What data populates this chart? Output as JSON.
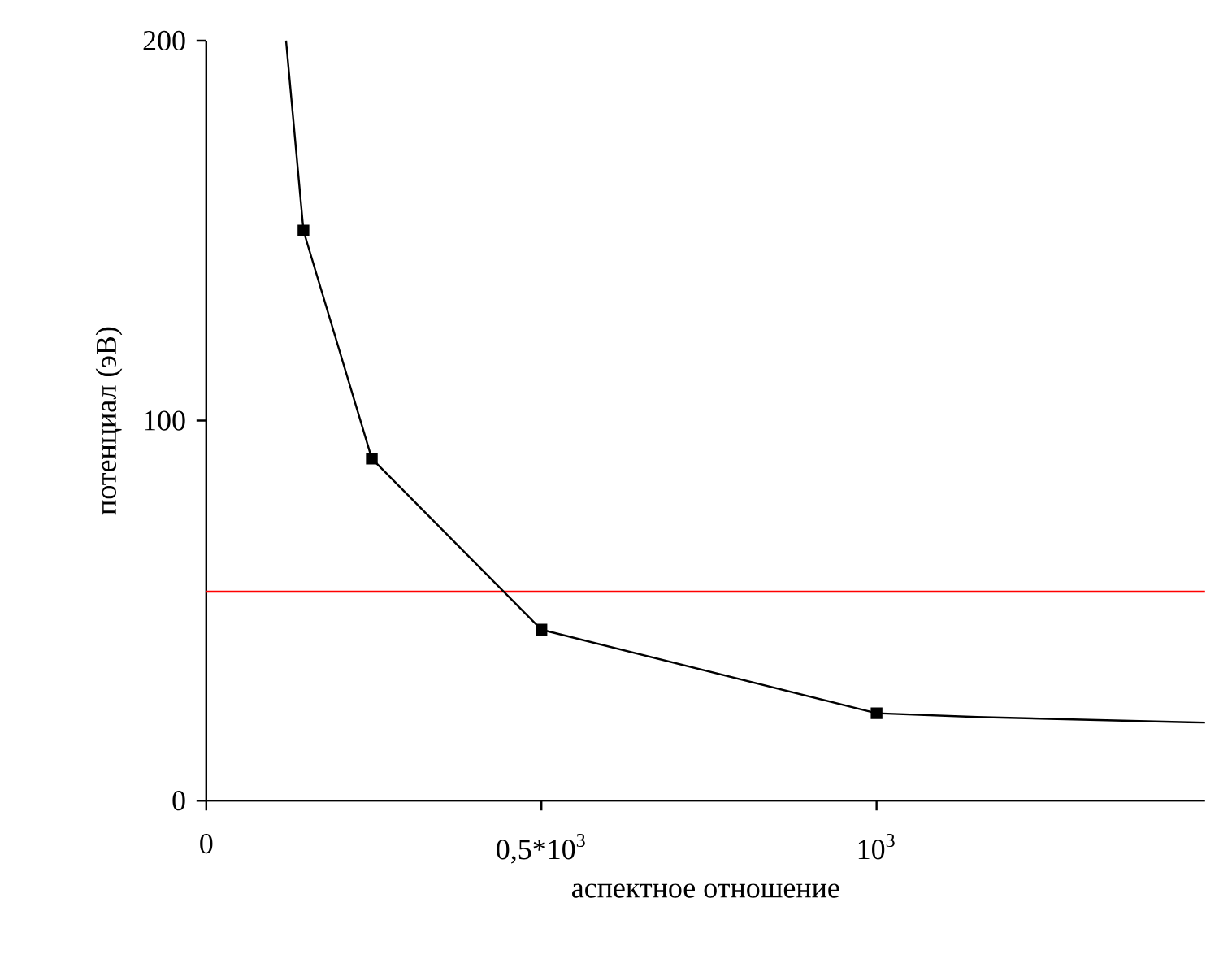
{
  "chart_data": {
    "type": "line",
    "xlabel": "аспектное отношение",
    "ylabel": "потенциал (эВ)",
    "xlim": [
      0,
      1490
    ],
    "ylim": [
      0,
      200
    ],
    "xticks": [
      0,
      {
        "value": 500,
        "label": "0,5*10$^{3}$"
      },
      {
        "value": 1000,
        "label": "10$^{3}$"
      }
    ],
    "yticks": [
      0,
      100,
      200
    ],
    "series": [
      {
        "color": "#000000",
        "marker": "none",
        "x": [
          119,
          145,
          247,
          500,
          1000,
          1150,
          1490
        ],
        "values": [
          200,
          150,
          90,
          45,
          23,
          22,
          20.5
        ]
      },
      {
        "type": "scatter",
        "color": "#000000",
        "marker": "square",
        "x": [
          145,
          247,
          500,
          1000
        ],
        "values": [
          150,
          90,
          45,
          23
        ]
      }
    ],
    "ref_lines": [
      {
        "axis": "y",
        "value": 55,
        "color": "#ff0000"
      }
    ]
  }
}
